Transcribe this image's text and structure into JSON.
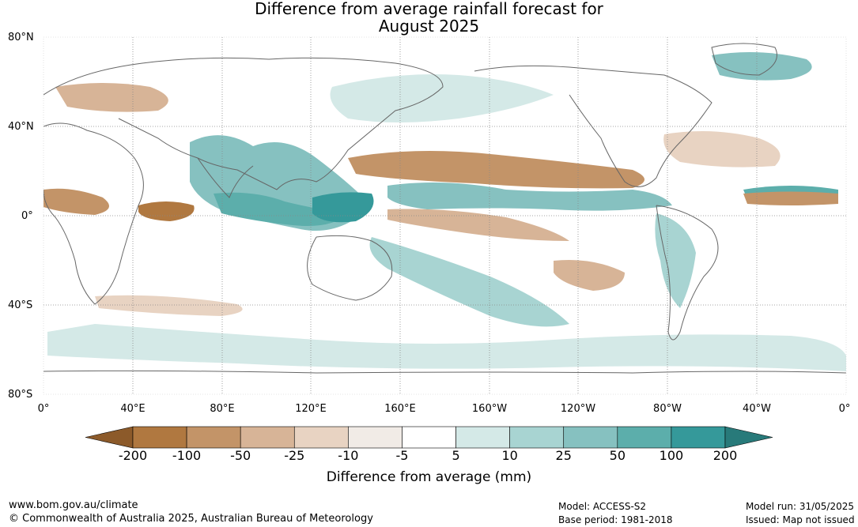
{
  "title": {
    "line1": "Difference from average rainfall forecast for",
    "line2": "August 2025"
  },
  "lat_labels": [
    "80°N",
    "40°N",
    "0°",
    "40°S",
    "80°S"
  ],
  "lon_labels": [
    "0°",
    "40°E",
    "80°E",
    "120°E",
    "160°E",
    "160°W",
    "120°W",
    "80°W",
    "40°W",
    "0°"
  ],
  "colorbar": {
    "ticks": [
      "-200",
      "-100",
      "-50",
      "-25",
      "-10",
      "-5",
      "5",
      "10",
      "25",
      "50",
      "100",
      "200"
    ],
    "colors": [
      "#8c5a2a",
      "#b07840",
      "#c39468",
      "#d7b497",
      "#e8d3c2",
      "#f1ebe6",
      "#ffffff",
      "#d4e9e7",
      "#a8d4d2",
      "#86c1c0",
      "#5caeab",
      "#35999a",
      "#287a7a"
    ],
    "label": "Difference from average (mm)"
  },
  "footer": {
    "url": "www.bom.gov.au/climate",
    "copyright": "© Commonwealth of Australia 2025, Australian Bureau of Meteorology",
    "model": "Model: ACCESS-S2",
    "base_period": "Base period: 1981-2018",
    "model_run": "Model run: 31/05/2025",
    "issued": "Issued: Map not issued"
  }
}
